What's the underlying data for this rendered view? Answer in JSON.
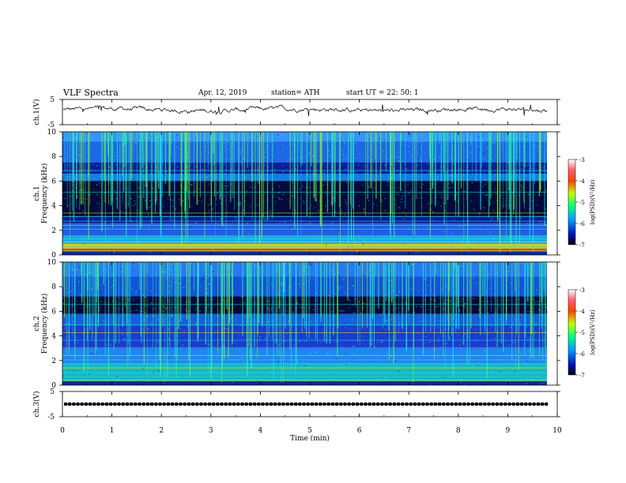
{
  "header": {
    "title": "VLF  Spectra",
    "date": "Apr. 12, 2019",
    "station": "station= ATH",
    "start": "start  UT  =    22: 50: 1"
  },
  "chart_data": [
    {
      "type": "line",
      "ylabel": "ch.1(V)",
      "ylim": [
        -5,
        5
      ],
      "yticks": [
        "5",
        "-5"
      ],
      "xlim": [
        0,
        10
      ]
    },
    {
      "type": "heatmap",
      "ylabel": "ch.1\nFrequency  (kHz)",
      "ylim": [
        0,
        10
      ],
      "yticks": [
        "10",
        "8",
        "6",
        "4",
        "2",
        "0"
      ],
      "xlim": [
        0,
        10
      ],
      "colorbar": {
        "label": "log(PSD)(V²/Hz)",
        "range": [
          -7,
          -3
        ],
        "ticks": [
          "-3",
          "-4",
          "-5",
          "-6",
          "-7"
        ]
      }
    },
    {
      "type": "heatmap",
      "ylabel": "ch.2\nFrequency  (kHz)",
      "ylim": [
        0,
        10
      ],
      "yticks": [
        "10",
        "8",
        "6",
        "4",
        "2",
        "0"
      ],
      "xlim": [
        0,
        10
      ],
      "colorbar": {
        "label": "log(PSD)(V²/Hz)",
        "range": [
          -7,
          -3
        ],
        "ticks": [
          "-3",
          "-4",
          "-5",
          "-6",
          "-7"
        ]
      }
    },
    {
      "type": "line",
      "ylabel": "ch.3(V)",
      "ylim": [
        -5,
        5
      ],
      "yticks": [
        "5",
        "-5"
      ],
      "xlabel": "Time  (min)",
      "xlim": [
        0,
        10
      ],
      "xticks": [
        "0",
        "1",
        "2",
        "3",
        "4",
        "5",
        "6",
        "7",
        "8",
        "9",
        "10"
      ]
    }
  ]
}
